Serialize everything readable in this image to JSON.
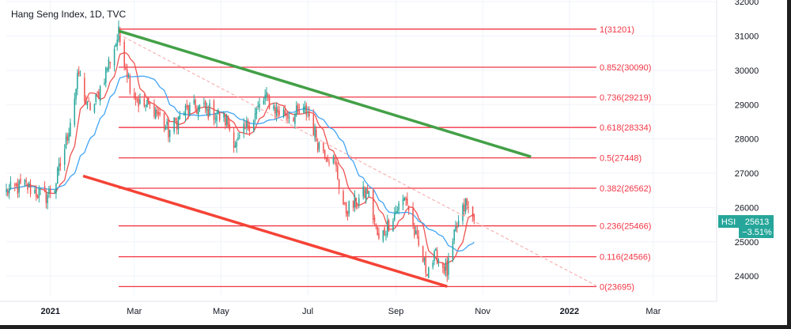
{
  "header": {
    "title": "Hang Seng Index, 1D, TVC"
  },
  "colors": {
    "bull": "#26a69a",
    "bear": "#ef5350",
    "fib": "#f23645",
    "channel_top": "#43a047",
    "channel_bottom": "#f44336",
    "ma_fast": "#ef5350",
    "ma_slow": "#42a5f5",
    "trend_dash": "#f7a3a3",
    "price_tag_label": "#26a69a",
    "price_tag_value": "#26a69a"
  },
  "chart_data": {
    "type": "candlestick",
    "symbol": "HSI",
    "timeframe": "1D",
    "source": "TVC",
    "x_axis": {
      "tick_labels": [
        "2021",
        "Mar",
        "May",
        "Jul",
        "Sep",
        "Nov",
        "2022",
        "Mar"
      ],
      "tick_dates": [
        "2021-01-01",
        "2021-03-01",
        "2021-05-01",
        "2021-07-01",
        "2021-09-01",
        "2021-11-01",
        "2022-01-01",
        "2022-03-01"
      ],
      "range": [
        "2020-12-01",
        "2022-04-14"
      ]
    },
    "y_axis": {
      "tick_values": [
        24000,
        25000,
        26000,
        27000,
        28000,
        29000,
        30000,
        31000,
        32000
      ],
      "range": [
        23450,
        32050
      ],
      "position": "right"
    },
    "last_price": {
      "label": "HSI",
      "value": "25613",
      "change": "−3.51%"
    },
    "fib_levels": [
      {
        "ratio": "1",
        "value": 31201,
        "label": "1(31201)"
      },
      {
        "ratio": "0.852",
        "value": 30090,
        "label": "0.852(30090)"
      },
      {
        "ratio": "0.736",
        "value": 29219,
        "label": "0.736(29219)"
      },
      {
        "ratio": "0.618",
        "value": 28334,
        "label": "0.618(28334)"
      },
      {
        "ratio": "0.5",
        "value": 27448,
        "label": "0.5(27448)"
      },
      {
        "ratio": "0.382",
        "value": 26562,
        "label": "0.382(26562)"
      },
      {
        "ratio": "0.236",
        "value": 25466,
        "label": "0.236(25466)"
      },
      {
        "ratio": "0.116",
        "value": 24566,
        "label": "0.116(24566)"
      },
      {
        "ratio": "0",
        "value": 23695,
        "label": "0(23695)"
      }
    ],
    "fib_range": [
      "2021-02-18",
      "2022-01-20"
    ],
    "trendlines": [
      {
        "name": "upper-channel",
        "from": [
          "2021-02-18",
          31150
        ],
        "to": [
          "2021-12-05",
          27480
        ]
      },
      {
        "name": "lower-channel",
        "from": [
          "2021-01-24",
          26920
        ],
        "to": [
          "2021-10-07",
          23700
        ]
      },
      {
        "name": "dashed-resistance",
        "from": [
          "2021-02-18",
          31050
        ],
        "to": [
          "2022-01-20",
          23720
        ]
      }
    ],
    "anchors": [
      [
        "2020-12-01",
        26450
      ],
      [
        "2020-12-14",
        26650
      ],
      [
        "2020-12-28",
        26300
      ],
      [
        "2021-01-04",
        26600
      ],
      [
        "2021-01-12",
        27900
      ],
      [
        "2021-01-21",
        29900
      ],
      [
        "2021-01-27",
        28900
      ],
      [
        "2021-02-01",
        29000
      ],
      [
        "2021-02-10",
        30100
      ],
      [
        "2021-02-18",
        31050
      ],
      [
        "2021-02-26",
        29600
      ],
      [
        "2021-03-05",
        29000
      ],
      [
        "2021-03-15",
        28900
      ],
      [
        "2021-03-25",
        28200
      ],
      [
        "2021-04-05",
        28800
      ],
      [
        "2021-04-15",
        28900
      ],
      [
        "2021-04-25",
        28800
      ],
      [
        "2021-05-05",
        28500
      ],
      [
        "2021-05-12",
        27800
      ],
      [
        "2021-05-20",
        28400
      ],
      [
        "2021-06-01",
        29200
      ],
      [
        "2021-06-10",
        28800
      ],
      [
        "2021-06-20",
        28700
      ],
      [
        "2021-07-01",
        28800
      ],
      [
        "2021-07-08",
        27900
      ],
      [
        "2021-07-20",
        27300
      ],
      [
        "2021-07-27",
        25900
      ],
      [
        "2021-08-03",
        26100
      ],
      [
        "2021-08-12",
        26500
      ],
      [
        "2021-08-20",
        25000
      ],
      [
        "2021-08-30",
        25800
      ],
      [
        "2021-09-08",
        26300
      ],
      [
        "2021-09-15",
        25100
      ],
      [
        "2021-09-22",
        24200
      ],
      [
        "2021-09-30",
        24600
      ],
      [
        "2021-10-07",
        24100
      ],
      [
        "2021-10-13",
        25300
      ],
      [
        "2021-10-20",
        26100
      ],
      [
        "2021-10-26",
        25613
      ]
    ],
    "series": [
      {
        "kind": "candles"
      },
      {
        "kind": "ma",
        "period": 10,
        "color_key": "ma_fast"
      },
      {
        "kind": "ma",
        "period": 25,
        "color_key": "ma_slow"
      }
    ]
  }
}
